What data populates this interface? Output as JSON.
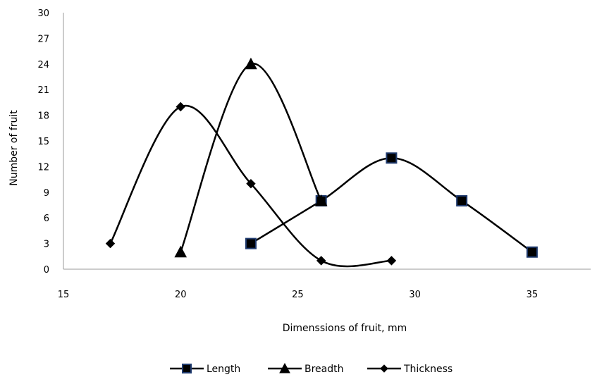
{
  "chart_data": {
    "type": "scatter",
    "title": "",
    "xlabel": "Dimenssions of fruit, mm",
    "ylabel": "Number of fruit",
    "xlim": [
      15,
      37.5
    ],
    "ylim": [
      0,
      30
    ],
    "xticks": [
      "15",
      "20",
      "25",
      "30",
      "35"
    ],
    "yticks": [
      "0",
      "3",
      "6",
      "9",
      "12",
      "15",
      "18",
      "21",
      "24",
      "27",
      "30"
    ],
    "grid": false,
    "smooth": true,
    "legend_position": "bottom",
    "series": [
      {
        "name": "Length",
        "marker": "square",
        "marker_fill": "#000000",
        "marker_stroke": "#1f3a6e",
        "x": [
          23,
          26,
          29,
          32,
          35
        ],
        "y": [
          3,
          8,
          13,
          8,
          2
        ]
      },
      {
        "name": "Breadth",
        "marker": "triangle",
        "marker_fill": "#000000",
        "marker_stroke": "#000000",
        "x": [
          20,
          23,
          26
        ],
        "y": [
          2,
          24,
          8
        ]
      },
      {
        "name": "Thickness",
        "marker": "diamond",
        "marker_fill": "#000000",
        "marker_stroke": "#000000",
        "x": [
          17,
          20,
          23,
          26,
          29
        ],
        "y": [
          3,
          19,
          10,
          1,
          1
        ]
      }
    ]
  }
}
